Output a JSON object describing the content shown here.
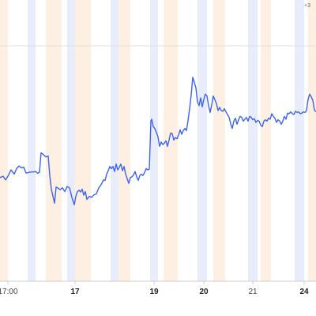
{
  "chart_data": {
    "type": "line",
    "title": "",
    "xlabel": "",
    "ylabel": "",
    "corner_label": "+3",
    "grid": true,
    "legend": "none",
    "ylim": [
      0,
      100
    ],
    "xlim": [
      0,
      400
    ],
    "x_ticks": [
      {
        "label": "17:00",
        "x": 10,
        "bold": false
      },
      {
        "label": "17",
        "x": 95,
        "bold": true
      },
      {
        "label": "19",
        "x": 195,
        "bold": true
      },
      {
        "label": "20",
        "x": 258,
        "bold": true
      },
      {
        "label": "21",
        "x": 320,
        "bold": false
      },
      {
        "label": "24",
        "x": 385,
        "bold": true
      }
    ],
    "bands": [
      {
        "x0": 0,
        "x1": 10,
        "kind": "weekend"
      },
      {
        "x0": 35,
        "x1": 45,
        "kind": "night"
      },
      {
        "x0": 58,
        "x1": 78,
        "kind": "weekend"
      },
      {
        "x0": 85,
        "x1": 95,
        "kind": "night"
      },
      {
        "x0": 95,
        "x1": 115,
        "kind": "weekend"
      },
      {
        "x0": 140,
        "x1": 150,
        "kind": "night"
      },
      {
        "x0": 150,
        "x1": 165,
        "kind": "weekend"
      },
      {
        "x0": 190,
        "x1": 200,
        "kind": "night"
      },
      {
        "x0": 207,
        "x1": 225,
        "kind": "weekend"
      },
      {
        "x0": 250,
        "x1": 262,
        "kind": "night"
      },
      {
        "x0": 270,
        "x1": 285,
        "kind": "weekend"
      },
      {
        "x0": 314,
        "x1": 326,
        "kind": "night"
      },
      {
        "x0": 330,
        "x1": 343,
        "kind": "weekend"
      },
      {
        "x0": 373,
        "x1": 385,
        "kind": "night"
      },
      {
        "x0": 390,
        "x1": 400,
        "kind": "weekend"
      }
    ],
    "series": [
      {
        "values": [
          [
            0,
            36.9
          ],
          [
            4,
            37.4
          ],
          [
            7,
            36.0
          ],
          [
            10,
            37.4
          ],
          [
            14,
            39.8
          ],
          [
            18,
            38.2
          ],
          [
            21,
            40.3
          ],
          [
            24,
            41.3
          ],
          [
            27,
            40.6
          ],
          [
            30,
            40.8
          ],
          [
            33,
            38.6
          ],
          [
            36,
            38.8
          ],
          [
            39,
            39.0
          ],
          [
            42,
            39.0
          ],
          [
            45,
            39.2
          ],
          [
            48,
            38.5
          ],
          [
            50,
            39.0
          ],
          [
            52,
            46.3
          ],
          [
            55,
            45.6
          ],
          [
            58,
            44.7
          ],
          [
            61,
            45.1
          ],
          [
            63,
            37.7
          ],
          [
            65,
            32.5
          ],
          [
            67,
            29.8
          ],
          [
            69,
            27.2
          ],
          [
            71,
            33.3
          ],
          [
            73,
            33.0
          ],
          [
            76,
            32.3
          ],
          [
            79,
            33.0
          ],
          [
            82,
            31.6
          ],
          [
            85,
            33.5
          ],
          [
            88,
            33.0
          ],
          [
            91,
            29.4
          ],
          [
            94,
            26.6
          ],
          [
            96,
            29.8
          ],
          [
            98,
            31.6
          ],
          [
            100,
            32.1
          ],
          [
            102,
            31.4
          ],
          [
            104,
            32.5
          ],
          [
            106,
            30.2
          ],
          [
            108,
            31.6
          ],
          [
            110,
            28.6
          ],
          [
            113,
            29.8
          ],
          [
            116,
            29.4
          ],
          [
            119,
            30.4
          ],
          [
            122,
            30.7
          ],
          [
            125,
            33.0
          ],
          [
            128,
            34.2
          ],
          [
            131,
            36.0
          ],
          [
            133,
            35.8
          ],
          [
            135,
            38.2
          ],
          [
            137,
            39.5
          ],
          [
            139,
            41.1
          ],
          [
            141,
            40.3
          ],
          [
            143,
            41.1
          ],
          [
            145,
            39.2
          ],
          [
            147,
            42.0
          ],
          [
            149,
            39.8
          ],
          [
            151,
            40.8
          ],
          [
            153,
            42.0
          ],
          [
            155,
            39.5
          ],
          [
            157,
            41.1
          ],
          [
            159,
            38.2
          ],
          [
            161,
            36.5
          ],
          [
            163,
            34.7
          ],
          [
            165,
            36.9
          ],
          [
            167,
            37.2
          ],
          [
            169,
            37.9
          ],
          [
            171,
            39.2
          ],
          [
            173,
            37.2
          ],
          [
            175,
            35.8
          ],
          [
            177,
            37.7
          ],
          [
            179,
            38.2
          ],
          [
            181,
            37.7
          ],
          [
            183,
            38.8
          ],
          [
            185,
            40.3
          ],
          [
            187,
            39.8
          ],
          [
            189,
            40.1
          ],
          [
            191,
            58.3
          ],
          [
            192,
            59.0
          ],
          [
            194,
            56.2
          ],
          [
            196,
            55.5
          ],
          [
            198,
            54.0
          ],
          [
            200,
            52.3
          ],
          [
            202,
            48.7
          ],
          [
            204,
            50.4
          ],
          [
            206,
            49.4
          ],
          [
            208,
            49.9
          ],
          [
            210,
            50.8
          ],
          [
            212,
            48.7
          ],
          [
            214,
            51.1
          ],
          [
            216,
            53.8
          ],
          [
            218,
            53.5
          ],
          [
            220,
            51.1
          ],
          [
            222,
            52.1
          ],
          [
            224,
            51.6
          ],
          [
            226,
            53.0
          ],
          [
            228,
            55.0
          ],
          [
            230,
            53.3
          ],
          [
            232,
            54.7
          ],
          [
            234,
            55.5
          ],
          [
            236,
            54.7
          ],
          [
            238,
            58.5
          ],
          [
            240,
            62.9
          ],
          [
            242,
            68.1
          ],
          [
            244,
            74.9
          ],
          [
            246,
            73.0
          ],
          [
            248,
            70.8
          ],
          [
            250,
            65.5
          ],
          [
            252,
            64.2
          ],
          [
            254,
            67.1
          ],
          [
            256,
            63.7
          ],
          [
            258,
            66.6
          ],
          [
            260,
            68.5
          ],
          [
            262,
            67.8
          ],
          [
            264,
            64.2
          ],
          [
            266,
            61.6
          ],
          [
            268,
            64.5
          ],
          [
            270,
            67.8
          ],
          [
            272,
            66.4
          ],
          [
            274,
            64.9
          ],
          [
            276,
            62.3
          ],
          [
            278,
            63.5
          ],
          [
            280,
            62.3
          ],
          [
            282,
            62.0
          ],
          [
            284,
            63.0
          ],
          [
            286,
            61.8
          ],
          [
            288,
            60.8
          ],
          [
            290,
            59.7
          ],
          [
            292,
            57.3
          ],
          [
            294,
            55.5
          ],
          [
            296,
            58.3
          ],
          [
            298,
            59.4
          ],
          [
            300,
            57.1
          ],
          [
            302,
            58.8
          ],
          [
            304,
            60.1
          ],
          [
            306,
            59.7
          ],
          [
            308,
            58.3
          ],
          [
            310,
            59.0
          ],
          [
            312,
            59.7
          ],
          [
            314,
            58.3
          ],
          [
            316,
            60.1
          ],
          [
            318,
            59.7
          ],
          [
            320,
            58.8
          ],
          [
            322,
            59.2
          ],
          [
            324,
            57.8
          ],
          [
            326,
            58.5
          ],
          [
            328,
            58.3
          ],
          [
            330,
            56.8
          ],
          [
            332,
            56.2
          ],
          [
            334,
            58.3
          ],
          [
            336,
            58.8
          ],
          [
            338,
            58.3
          ],
          [
            340,
            59.4
          ],
          [
            342,
            59.0
          ],
          [
            344,
            61.1
          ],
          [
            346,
            60.1
          ],
          [
            348,
            59.4
          ],
          [
            350,
            57.8
          ],
          [
            352,
            58.8
          ],
          [
            354,
            58.3
          ],
          [
            356,
            57.1
          ],
          [
            358,
            58.3
          ],
          [
            360,
            60.1
          ],
          [
            362,
            59.0
          ],
          [
            364,
            61.3
          ],
          [
            366,
            61.1
          ],
          [
            368,
            61.8
          ],
          [
            370,
            61.1
          ],
          [
            372,
            60.8
          ],
          [
            374,
            62.0
          ],
          [
            376,
            61.6
          ],
          [
            378,
            61.8
          ],
          [
            380,
            61.1
          ],
          [
            382,
            61.3
          ],
          [
            384,
            61.8
          ],
          [
            386,
            61.6
          ],
          [
            388,
            62.3
          ],
          [
            390,
            66.6
          ],
          [
            392,
            68.5
          ],
          [
            394,
            67.5
          ],
          [
            396,
            66.1
          ],
          [
            398,
            62.5
          ],
          [
            400,
            61.8
          ]
        ]
      }
    ]
  },
  "colors": {
    "line": "#3b63f0",
    "band_night": "#e9edfb",
    "band_weekend": "#fdf0e3",
    "grid": "#e0e0e0",
    "axis": "#cccccc"
  }
}
